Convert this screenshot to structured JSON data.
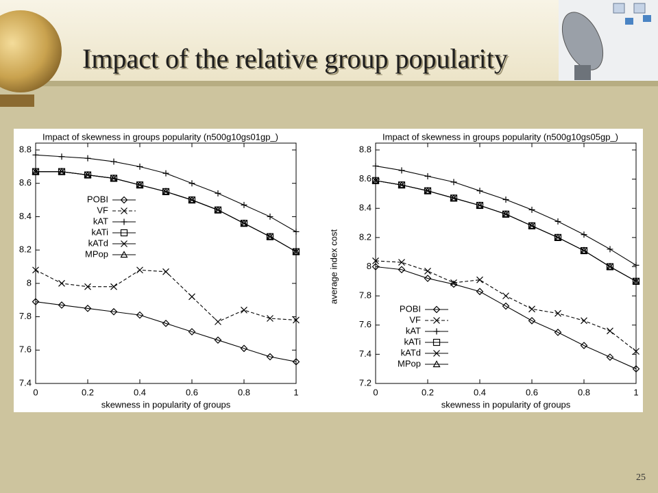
{
  "slide": {
    "title": "Impact of the relative group popularity",
    "page_number": "25"
  },
  "chart_data": [
    {
      "type": "line",
      "title": "Impact of skewness in groups popularity (n500g10gs01gp_)",
      "x_label": "skewness in popularity of groups",
      "x": [
        0,
        0.1,
        0.2,
        0.3,
        0.4,
        0.5,
        0.6,
        0.7,
        0.8,
        0.9,
        1
      ],
      "xlim": [
        0,
        1
      ],
      "xticks": [
        0,
        0.2,
        0.4,
        0.6,
        0.8,
        1
      ],
      "ylim": [
        7.4,
        8.8
      ],
      "yticks": [
        7.4,
        7.6,
        7.8,
        8,
        8.2,
        8.4,
        8.6,
        8.8
      ],
      "legend_position": "upper left",
      "series": [
        {
          "name": "POBI",
          "color": "#000000",
          "marker": "diamond",
          "dashed": false,
          "values": [
            7.89,
            7.87,
            7.85,
            7.83,
            7.81,
            7.76,
            7.71,
            7.66,
            7.61,
            7.56,
            7.53
          ]
        },
        {
          "name": "VF",
          "color": "#000000",
          "marker": "x",
          "dashed": true,
          "values": [
            8.08,
            8.0,
            7.98,
            7.98,
            8.08,
            8.07,
            7.92,
            7.77,
            7.84,
            7.79,
            7.78
          ]
        },
        {
          "name": "kAT",
          "color": "#000000",
          "marker": "plus",
          "dashed": false,
          "values": [
            8.77,
            8.76,
            8.75,
            8.73,
            8.7,
            8.66,
            8.6,
            8.54,
            8.47,
            8.4,
            8.31
          ]
        },
        {
          "name": "kATi",
          "color": "#000000",
          "marker": "square",
          "dashed": false,
          "values": [
            8.67,
            8.67,
            8.65,
            8.63,
            8.59,
            8.55,
            8.5,
            8.44,
            8.36,
            8.28,
            8.19
          ]
        },
        {
          "name": "kATd",
          "color": "#000000",
          "marker": "x",
          "dashed": false,
          "values": [
            8.67,
            8.67,
            8.65,
            8.63,
            8.59,
            8.55,
            8.5,
            8.44,
            8.36,
            8.28,
            8.19
          ]
        },
        {
          "name": "MPop",
          "color": "#000000",
          "marker": "triangle",
          "dashed": false,
          "values": [
            8.67,
            8.67,
            8.65,
            8.63,
            8.59,
            8.55,
            8.5,
            8.44,
            8.36,
            8.28,
            8.19
          ]
        }
      ]
    },
    {
      "type": "line",
      "title": "Impact of skewness in groups popularity (n500g10gs05gp_)",
      "x_label": "skewness in popularity of groups",
      "y_label": "average index cost",
      "x": [
        0,
        0.1,
        0.2,
        0.3,
        0.4,
        0.5,
        0.6,
        0.7,
        0.8,
        0.9,
        1
      ],
      "xlim": [
        0,
        1
      ],
      "xticks": [
        0,
        0.2,
        0.4,
        0.6,
        0.8,
        1
      ],
      "ylim": [
        7.2,
        8.8
      ],
      "yticks": [
        7.2,
        7.4,
        7.6,
        7.8,
        8,
        8.2,
        8.4,
        8.6,
        8.8
      ],
      "legend_position": "lower left",
      "series": [
        {
          "name": "POBI",
          "color": "#000000",
          "marker": "diamond",
          "dashed": false,
          "values": [
            8.0,
            7.98,
            7.92,
            7.88,
            7.83,
            7.73,
            7.63,
            7.55,
            7.46,
            7.38,
            7.3
          ]
        },
        {
          "name": "VF",
          "color": "#000000",
          "marker": "x",
          "dashed": true,
          "values": [
            8.04,
            8.03,
            7.97,
            7.89,
            7.91,
            7.8,
            7.71,
            7.68,
            7.63,
            7.56,
            7.42
          ]
        },
        {
          "name": "kAT",
          "color": "#000000",
          "marker": "plus",
          "dashed": false,
          "values": [
            8.69,
            8.66,
            8.62,
            8.58,
            8.52,
            8.46,
            8.39,
            8.31,
            8.22,
            8.12,
            8.01
          ]
        },
        {
          "name": "kATi",
          "color": "#000000",
          "marker": "square",
          "dashed": false,
          "values": [
            8.59,
            8.56,
            8.52,
            8.47,
            8.42,
            8.36,
            8.28,
            8.2,
            8.11,
            8.0,
            7.9
          ]
        },
        {
          "name": "kATd",
          "color": "#000000",
          "marker": "x",
          "dashed": false,
          "values": [
            8.59,
            8.56,
            8.52,
            8.47,
            8.42,
            8.36,
            8.28,
            8.2,
            8.11,
            8.0,
            7.9
          ]
        },
        {
          "name": "MPop",
          "color": "#000000",
          "marker": "triangle",
          "dashed": false,
          "values": [
            8.59,
            8.56,
            8.52,
            8.47,
            8.42,
            8.36,
            8.28,
            8.2,
            8.11,
            8.0,
            7.9
          ]
        }
      ]
    }
  ]
}
